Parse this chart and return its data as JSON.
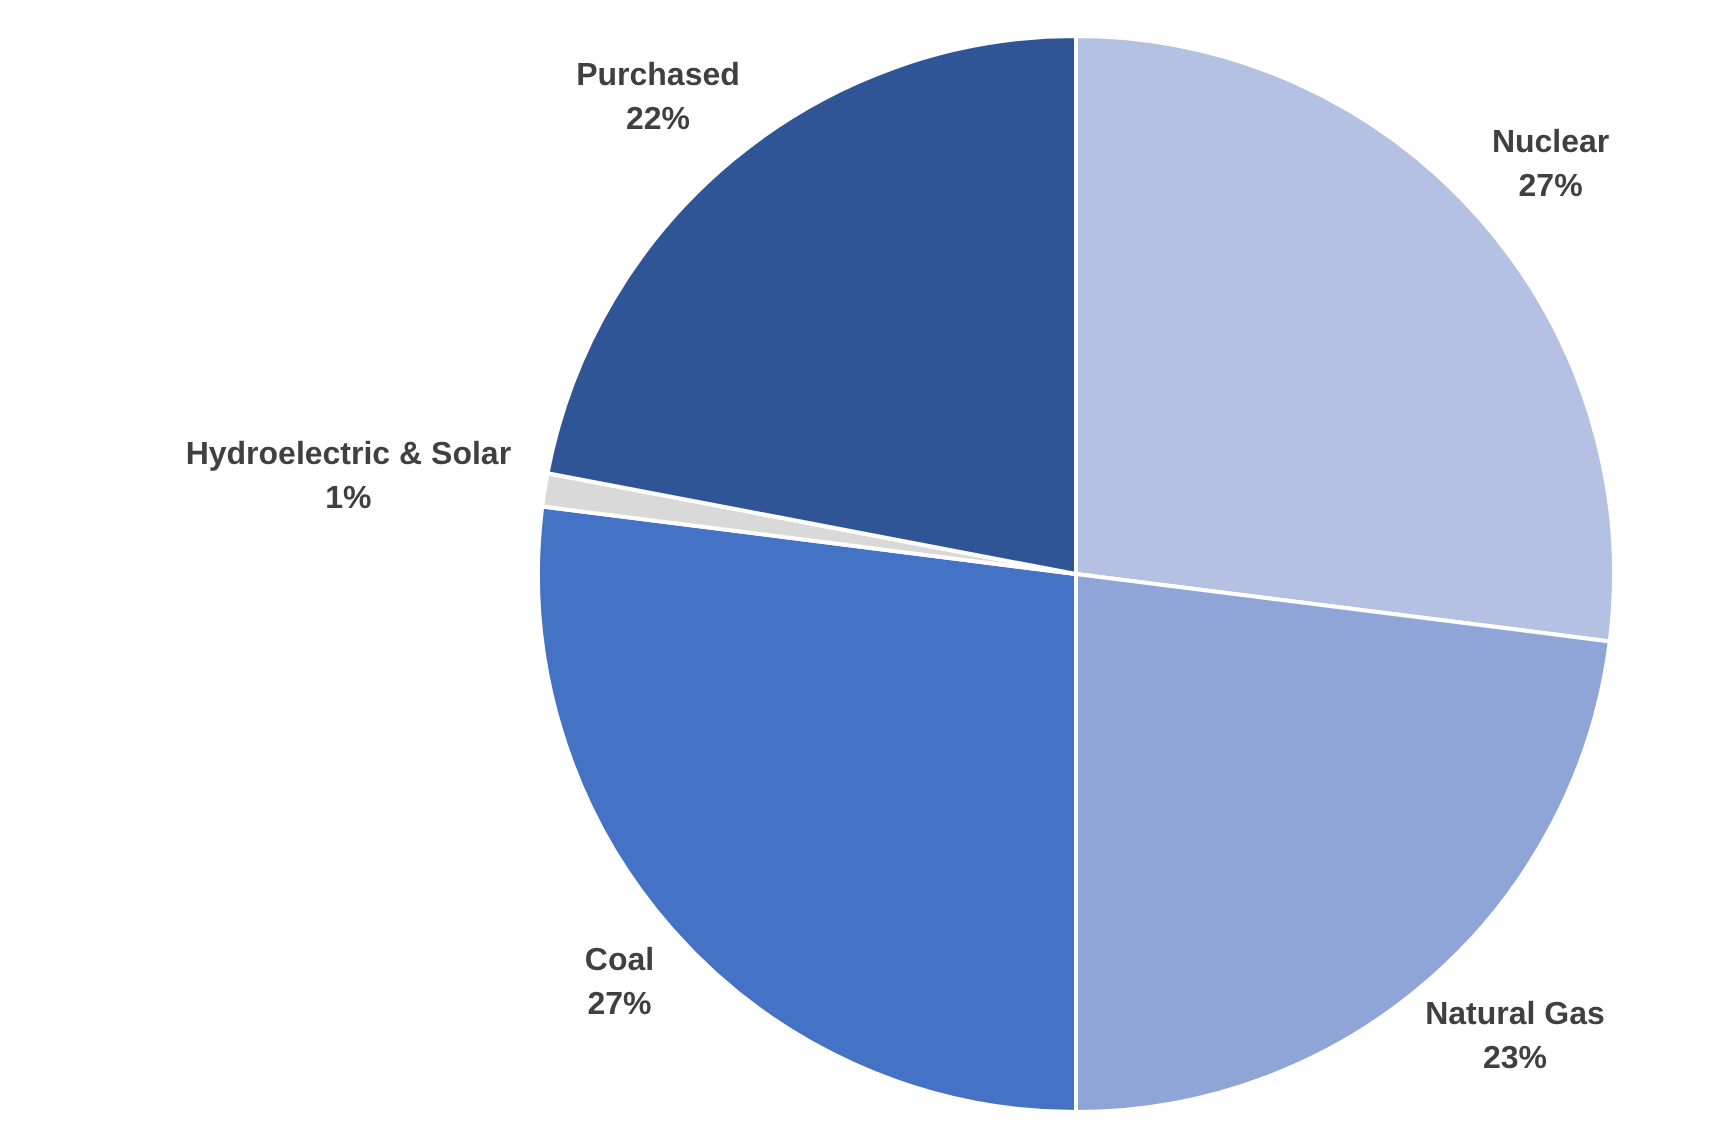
{
  "chart_data": {
    "type": "pie",
    "categories": [
      "Nuclear",
      "Natural Gas",
      "Coal",
      "Hydroelectric & Solar",
      "Purchased"
    ],
    "values": [
      27,
      23,
      27,
      1,
      22
    ],
    "colors": [
      "#b4c1e3",
      "#8fa5d7",
      "#4472c4",
      "#d9d9d9",
      "#2f5597"
    ],
    "value_labels": [
      "27%",
      "23%",
      "27%",
      "1%",
      "22%"
    ]
  }
}
